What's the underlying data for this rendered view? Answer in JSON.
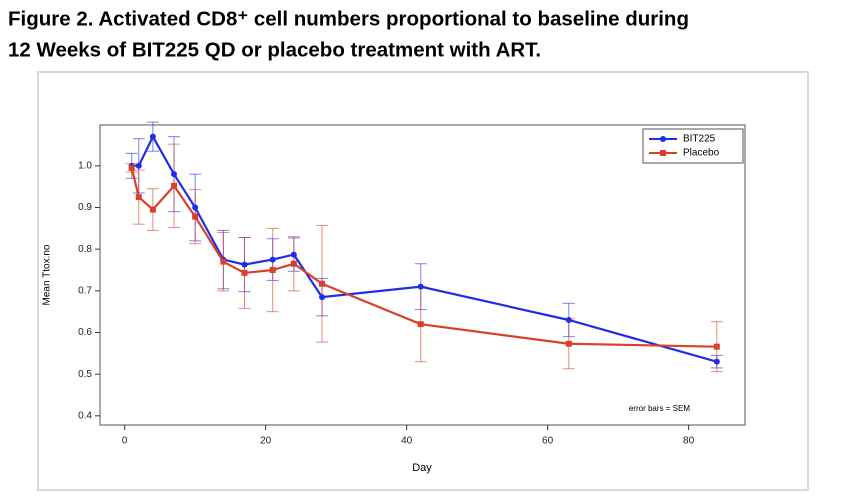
{
  "chart_data": {
    "type": "line",
    "title": [
      "Figure 2.  Activated CD8⁺ cell numbers proportional to baseline during",
      "12 Weeks of BIT225 QD or placebo treatment with ART."
    ],
    "xlabel": "Day",
    "ylabel": "Mean Ttox.no",
    "annotation": "error bars = SEM",
    "x": [
      1,
      2,
      4,
      7,
      10,
      14,
      17,
      21,
      24,
      28,
      42,
      63,
      84
    ],
    "series": [
      {
        "name": "BIT225",
        "color": "#1e2ee6",
        "marker": "circle",
        "values": [
          1.0,
          1.0,
          1.07,
          0.98,
          0.9,
          0.775,
          0.763,
          0.775,
          0.787,
          0.685,
          0.71,
          0.63,
          0.53
        ],
        "errors": [
          0.03,
          0.065,
          0.035,
          0.09,
          0.08,
          0.07,
          0.065,
          0.05,
          0.04,
          0.045,
          0.055,
          0.04,
          0.015
        ]
      },
      {
        "name": "Placebo",
        "color": "#d9402a",
        "marker": "square",
        "values": [
          0.995,
          0.925,
          0.895,
          0.952,
          0.878,
          0.77,
          0.743,
          0.75,
          0.765,
          0.717,
          0.62,
          0.573,
          0.566
        ],
        "errors": [
          0.01,
          0.065,
          0.05,
          0.1,
          0.065,
          0.07,
          0.085,
          0.1,
          0.065,
          0.14,
          0.09,
          0.06,
          0.06
        ]
      }
    ],
    "xlim": [
      -3.5,
      88
    ],
    "ylim": [
      0.378,
      1.098
    ],
    "xticks": [
      0,
      20,
      40,
      60,
      80
    ],
    "yticks": [
      0.4,
      0.5,
      0.6,
      0.7,
      0.8,
      0.9,
      {
        "value": 1,
        "label": "1.0"
      }
    ],
    "grid": false,
    "legend": "upper right"
  }
}
